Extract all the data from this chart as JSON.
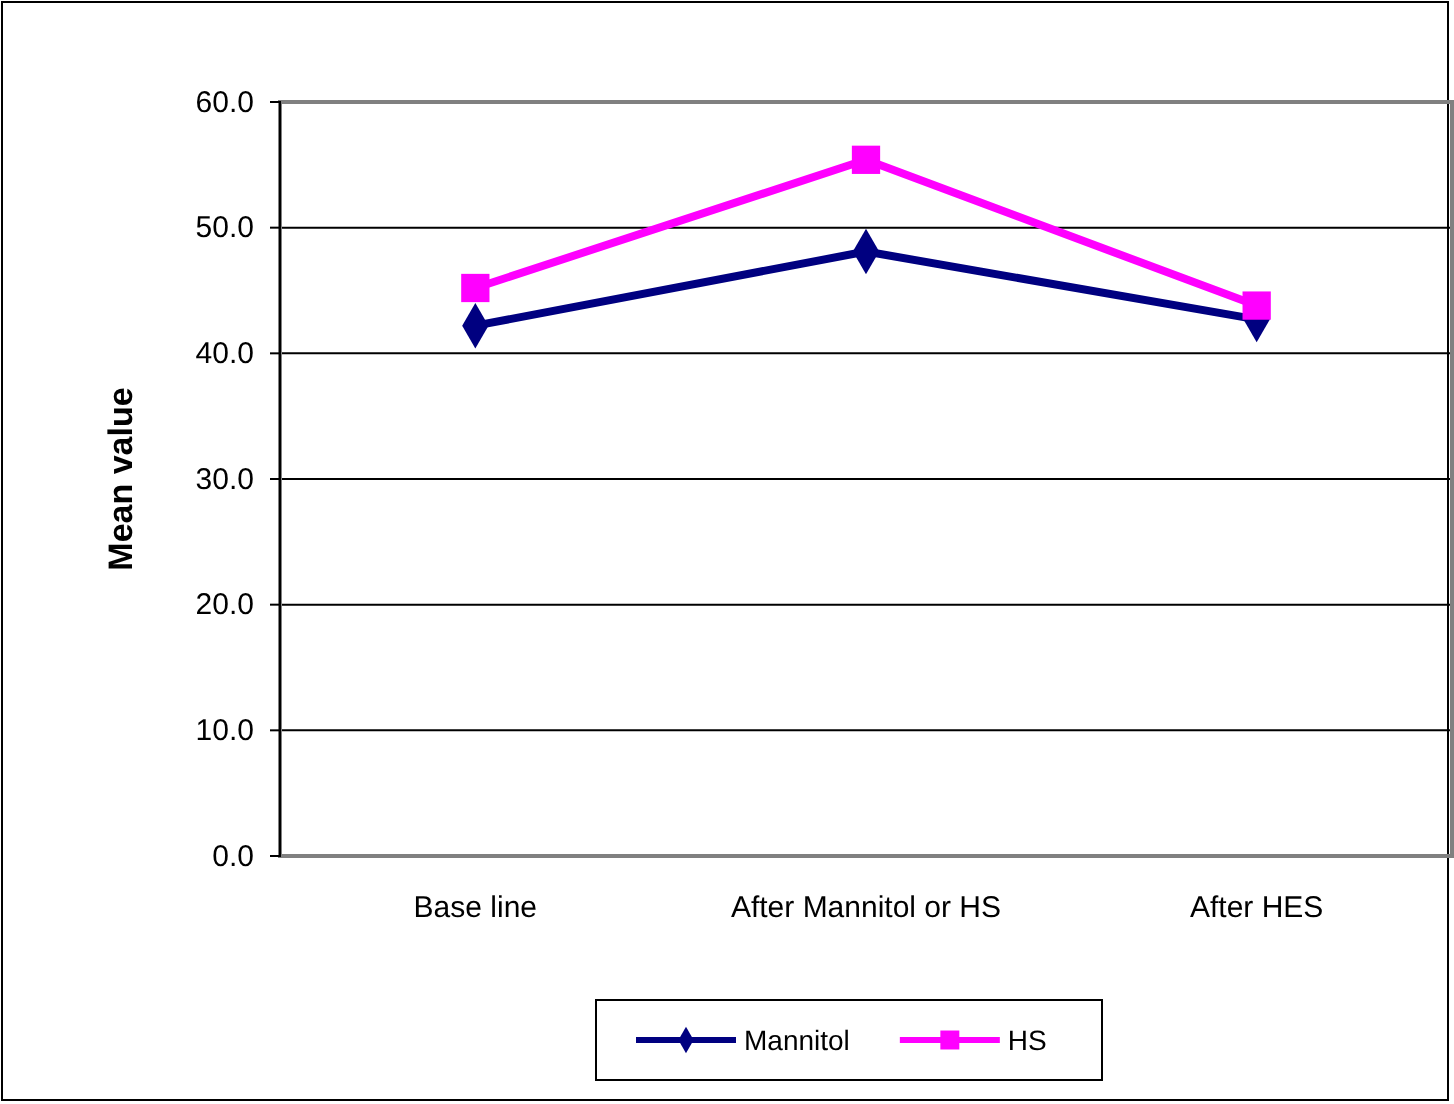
{
  "chart_data": {
    "type": "line",
    "ylabel": "Mean value",
    "categories": [
      "Base line",
      "After Mannitol or HS",
      "After HES"
    ],
    "series": [
      {
        "name": "Mannitol",
        "color": "#000080",
        "marker": "diamond",
        "values": [
          42.2,
          48.1,
          42.7
        ]
      },
      {
        "name": "HS",
        "color": "#ff00ff",
        "marker": "square",
        "values": [
          45.2,
          55.4,
          43.8
        ]
      }
    ],
    "ylim": [
      0,
      60
    ],
    "yticks": [
      {
        "value": 0,
        "label": "0.0"
      },
      {
        "value": 10,
        "label": "10.0"
      },
      {
        "value": 20,
        "label": "20.0"
      },
      {
        "value": 30,
        "label": "30.0"
      },
      {
        "value": 40,
        "label": "40.0"
      },
      {
        "value": 50,
        "label": "50.0"
      },
      {
        "value": 60,
        "label": "60.0"
      }
    ],
    "grid": "y",
    "legend": "bottom"
  }
}
